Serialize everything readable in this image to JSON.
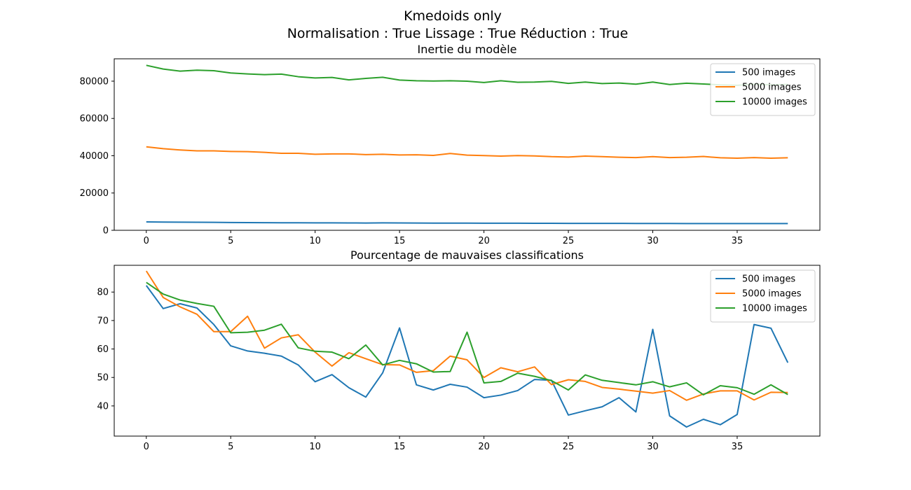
{
  "figure": {
    "suptitle_line1": "Kmedoids only",
    "suptitle_line2": "Normalisation : True Lissage : True Réduction : True"
  },
  "chart_data": [
    {
      "type": "line",
      "title": "Inertie du modèle",
      "xlabel": "",
      "ylabel": "",
      "xlim": [
        -1.9,
        39.9
      ],
      "ylim": [
        0,
        92000
      ],
      "xticks": [
        0,
        5,
        10,
        15,
        20,
        25,
        30,
        35
      ],
      "yticks": [
        0,
        20000,
        40000,
        60000,
        80000
      ],
      "grid": false,
      "legend_position": "top-right",
      "x": [
        0,
        1,
        2,
        3,
        4,
        5,
        6,
        7,
        8,
        9,
        10,
        11,
        12,
        13,
        14,
        15,
        16,
        17,
        18,
        19,
        20,
        21,
        22,
        23,
        24,
        25,
        26,
        27,
        28,
        29,
        30,
        31,
        32,
        33,
        34,
        35,
        36,
        37,
        38
      ],
      "series": [
        {
          "name": "500 images",
          "color": "#1f77b4",
          "values": [
            4500,
            4400,
            4350,
            4300,
            4250,
            4200,
            4150,
            4100,
            4050,
            4050,
            4000,
            4000,
            3950,
            3900,
            4000,
            3950,
            3900,
            3850,
            3850,
            3850,
            3800,
            3800,
            3800,
            3750,
            3750,
            3700,
            3700,
            3700,
            3700,
            3650,
            3650,
            3650,
            3600,
            3600,
            3600,
            3600,
            3600,
            3600,
            3600
          ]
        },
        {
          "name": "5000 images",
          "color": "#ff7f0e",
          "values": [
            44800,
            43800,
            43100,
            42600,
            42600,
            42300,
            42200,
            41800,
            41300,
            41300,
            40800,
            41000,
            41000,
            40600,
            40800,
            40400,
            40500,
            40200,
            41200,
            40300,
            40100,
            39800,
            40100,
            39900,
            39500,
            39300,
            39800,
            39500,
            39200,
            39000,
            39500,
            39000,
            39200,
            39600,
            38900,
            38700,
            39000,
            38700,
            38900
          ]
        },
        {
          "name": "10000 images",
          "color": "#2ca02c",
          "values": [
            88500,
            86500,
            85400,
            85900,
            85600,
            84400,
            83900,
            83500,
            83800,
            82400,
            81700,
            82000,
            80700,
            81500,
            82100,
            80600,
            80200,
            80100,
            80200,
            80000,
            79300,
            80200,
            79400,
            79500,
            79900,
            78800,
            79500,
            78700,
            79000,
            78400,
            79500,
            78200,
            78900,
            78500,
            78000,
            77800,
            78400,
            78000,
            78300
          ]
        }
      ]
    },
    {
      "type": "line",
      "title": "Pourcentage de mauvaises classifications",
      "xlabel": "",
      "ylabel": "",
      "xlim": [
        -1.9,
        39.9
      ],
      "ylim": [
        29.4,
        89.4
      ],
      "xticks": [
        0,
        5,
        10,
        15,
        20,
        25,
        30,
        35
      ],
      "yticks": [
        40,
        50,
        60,
        70,
        80
      ],
      "grid": false,
      "legend_position": "top-right",
      "x": [
        0,
        1,
        2,
        3,
        4,
        5,
        6,
        7,
        8,
        9,
        10,
        11,
        12,
        13,
        14,
        15,
        16,
        17,
        18,
        19,
        20,
        21,
        22,
        23,
        24,
        25,
        26,
        27,
        28,
        29,
        30,
        31,
        32,
        33,
        34,
        35,
        36,
        37,
        38
      ],
      "series": [
        {
          "name": "500 images",
          "color": "#1f77b4",
          "values": [
            82.3,
            74.2,
            75.9,
            74.4,
            68.6,
            61.1,
            59.3,
            58.5,
            57.5,
            54.4,
            48.5,
            51.0,
            46.4,
            43.1,
            51.6,
            67.4,
            47.4,
            45.6,
            47.6,
            46.6,
            42.9,
            43.8,
            45.4,
            49.3,
            49.0,
            36.8,
            38.3,
            39.7,
            42.9,
            37.9,
            66.9,
            36.5,
            32.6,
            35.3,
            33.4,
            37.0,
            68.6,
            67.3,
            55.2
          ]
        },
        {
          "name": "5000 images",
          "color": "#ff7f0e",
          "values": [
            87.4,
            78.1,
            74.8,
            72.2,
            66.1,
            66.1,
            71.5,
            60.3,
            63.9,
            65.0,
            58.9,
            54.0,
            58.7,
            56.6,
            54.5,
            54.4,
            51.8,
            52.4,
            57.5,
            56.2,
            50.0,
            53.4,
            52.0,
            53.7,
            47.5,
            49.2,
            48.6,
            46.5,
            45.9,
            45.2,
            44.5,
            45.4,
            42.0,
            44.2,
            45.3,
            45.3,
            42.1,
            44.8,
            44.7
          ]
        },
        {
          "name": "10000 images",
          "color": "#2ca02c",
          "values": [
            83.4,
            79.3,
            77.2,
            76.0,
            75.0,
            65.7,
            65.9,
            66.6,
            68.7,
            60.4,
            59.2,
            58.9,
            56.6,
            61.4,
            54.4,
            56.0,
            54.8,
            51.9,
            52.1,
            65.9,
            48.1,
            48.6,
            51.5,
            50.4,
            48.9,
            45.6,
            50.9,
            49.0,
            48.2,
            47.4,
            48.5,
            46.7,
            48.1,
            43.9,
            47.1,
            46.4,
            44.1,
            47.4,
            44.0
          ]
        }
      ]
    }
  ]
}
